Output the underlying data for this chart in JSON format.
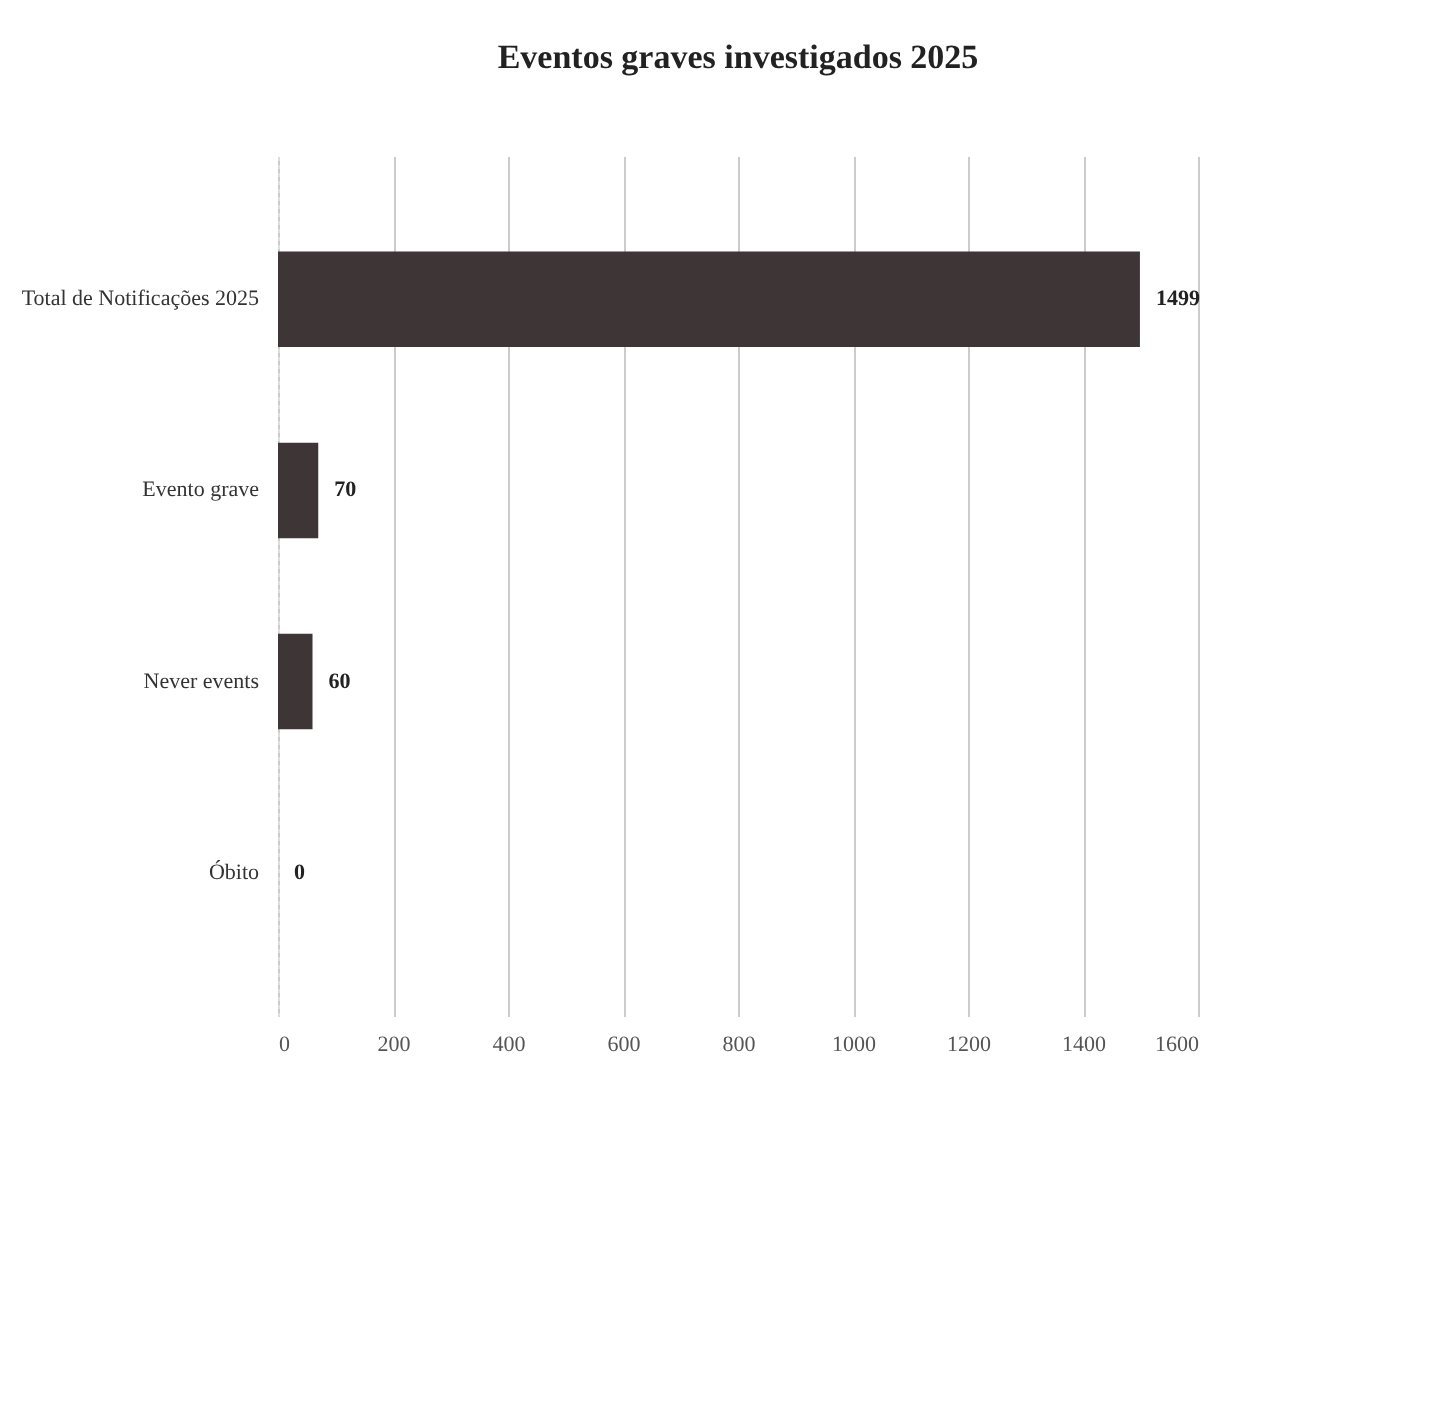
{
  "chart_data": {
    "type": "bar",
    "orientation": "horizontal",
    "title": "Eventos graves investigados 2025",
    "categories": [
      "Total de Notificações 2025",
      "Evento grave",
      "Never events",
      "Óbito"
    ],
    "values": [
      1499,
      70,
      60,
      0
    ],
    "color": "#3d3536",
    "data_labels": true,
    "xlim": [
      0,
      1600
    ],
    "xticks": [
      0,
      200,
      400,
      600,
      800,
      1000,
      1200,
      1400,
      1600
    ],
    "grid": "x"
  }
}
